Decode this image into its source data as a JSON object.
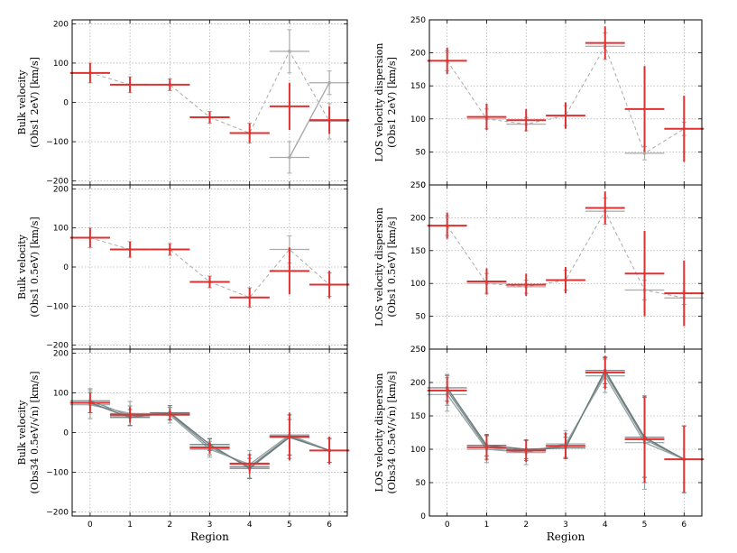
{
  "chart_data": [
    {
      "type": "scatter",
      "panel": "left-top",
      "ylabel_line1": "Bulk velocity",
      "ylabel_line2": "(Obs1 2eV) [km/s]",
      "xlabel": "",
      "ylim": [
        -210,
        210
      ],
      "yticks": [
        -200,
        -100,
        0,
        100,
        200
      ],
      "xticks": [
        0,
        1,
        2,
        3,
        4,
        5,
        6
      ],
      "grid": true,
      "series": [
        {
          "name": "comparison",
          "color": "#aaaaaa",
          "x": [
            0,
            1,
            2,
            3,
            4,
            5,
            6
          ],
          "y": [
            75,
            45,
            45,
            -38,
            -78,
            130,
            -48
          ],
          "yerr": [
            25,
            20,
            15,
            15,
            25,
            55,
            45
          ],
          "dashed": true
        },
        {
          "name": "comparison-2",
          "color": "#aaaaaa",
          "x": [
            5,
            6
          ],
          "y": [
            -140,
            50
          ],
          "yerr": [
            40,
            30
          ],
          "dashed": false
        },
        {
          "name": "measurement",
          "color": "#e03131",
          "x": [
            0,
            1,
            2,
            3,
            4,
            5,
            6
          ],
          "y": [
            75,
            45,
            45,
            -38,
            -78,
            -10,
            -45
          ],
          "yerr": [
            25,
            20,
            15,
            15,
            25,
            60,
            35
          ]
        }
      ]
    },
    {
      "type": "scatter",
      "panel": "right-top",
      "ylabel_line1": "LOS velocity dispersion",
      "ylabel_line2": "(Obs1 2eV) [km/s]",
      "xlabel": "",
      "ylim": [
        0,
        250
      ],
      "yticks": [
        0,
        50,
        100,
        150,
        200,
        250
      ],
      "xticks": [
        0,
        1,
        2,
        3,
        4,
        5,
        6
      ],
      "grid": true,
      "series": [
        {
          "name": "comparison",
          "color": "#aaaaaa",
          "x": [
            0,
            1,
            2,
            3,
            4,
            5,
            6
          ],
          "y": [
            188,
            100,
            92,
            105,
            210,
            48,
            85
          ],
          "yerr": [
            15,
            15,
            10,
            15,
            20,
            10,
            10
          ],
          "dashed": true
        },
        {
          "name": "measurement",
          "color": "#e03131",
          "x": [
            0,
            1,
            2,
            3,
            4,
            5,
            6
          ],
          "y": [
            188,
            103,
            98,
            105,
            215,
            115,
            85
          ],
          "yerr": [
            20,
            20,
            17,
            20,
            25,
            65,
            50
          ]
        }
      ]
    },
    {
      "type": "scatter",
      "panel": "left-middle",
      "ylabel_line1": "Bulk velocity",
      "ylabel_line2": "(Obs1 0.5eV) [km/s]",
      "xlabel": "",
      "ylim": [
        -210,
        210
      ],
      "yticks": [
        -200,
        -100,
        0,
        100,
        200
      ],
      "xticks": [
        0,
        1,
        2,
        3,
        4,
        5,
        6
      ],
      "grid": true,
      "series": [
        {
          "name": "comparison",
          "color": "#aaaaaa",
          "x": [
            0,
            1,
            2,
            3,
            4,
            5,
            6
          ],
          "y": [
            75,
            45,
            45,
            -38,
            -78,
            45,
            -45
          ],
          "yerr": [
            25,
            20,
            15,
            15,
            25,
            35,
            30
          ],
          "dashed": true
        },
        {
          "name": "measurement",
          "color": "#e03131",
          "x": [
            0,
            1,
            2,
            3,
            4,
            5,
            6
          ],
          "y": [
            75,
            45,
            45,
            -38,
            -78,
            -10,
            -45
          ],
          "yerr": [
            25,
            20,
            15,
            15,
            25,
            60,
            35
          ]
        }
      ]
    },
    {
      "type": "scatter",
      "panel": "right-middle",
      "ylabel_line1": "LOS velocity dispersion",
      "ylabel_line2": "(Obs1 0.5eV) [km/s]",
      "xlabel": "",
      "ylim": [
        0,
        250
      ],
      "yticks": [
        0,
        50,
        100,
        150,
        200,
        250
      ],
      "xticks": [
        0,
        1,
        2,
        3,
        4,
        5,
        6
      ],
      "grid": true,
      "series": [
        {
          "name": "comparison",
          "color": "#aaaaaa",
          "x": [
            0,
            1,
            2,
            3,
            4,
            5,
            6
          ],
          "y": [
            188,
            100,
            95,
            105,
            210,
            90,
            78
          ],
          "yerr": [
            15,
            15,
            10,
            15,
            20,
            15,
            10
          ],
          "dashed": true
        },
        {
          "name": "measurement",
          "color": "#e03131",
          "x": [
            0,
            1,
            2,
            3,
            4,
            5,
            6
          ],
          "y": [
            188,
            103,
            98,
            105,
            215,
            115,
            85
          ],
          "yerr": [
            20,
            20,
            17,
            20,
            25,
            65,
            50
          ]
        }
      ]
    },
    {
      "type": "scatter",
      "panel": "left-bottom",
      "ylabel_line1": "Bulk velocity",
      "ylabel_line2": "(Obs34 0.5eV/√n) [km/s]",
      "xlabel": "Region",
      "ylim": [
        -210,
        210
      ],
      "yticks": [
        -200,
        -100,
        0,
        100,
        200
      ],
      "xticks": [
        0,
        1,
        2,
        3,
        4,
        5,
        6
      ],
      "grid": true,
      "series": [
        {
          "name": "comparison-a",
          "color": "#7f8c8d",
          "x": [
            0,
            1,
            2,
            3,
            4,
            5,
            6
          ],
          "y": [
            80,
            42,
            48,
            -36,
            -86,
            -10,
            -45
          ],
          "yerr": [
            30,
            25,
            15,
            20,
            30,
            55,
            30
          ]
        },
        {
          "name": "comparison-b",
          "color": "#95a5a6",
          "x": [
            0,
            1,
            2,
            3,
            4,
            5,
            6
          ],
          "y": [
            70,
            48,
            44,
            -42,
            -80,
            -6,
            -45
          ],
          "yerr": [
            35,
            30,
            20,
            20,
            35,
            50,
            30
          ]
        },
        {
          "name": "comparison-c",
          "color": "#6c7a7b",
          "x": [
            0,
            1,
            2,
            3,
            4,
            5,
            6
          ],
          "y": [
            75,
            38,
            50,
            -30,
            -90,
            -12,
            -45
          ],
          "yerr": [
            25,
            20,
            18,
            15,
            25,
            45,
            30
          ]
        },
        {
          "name": "measurement",
          "color": "#e03131",
          "x": [
            0,
            1,
            2,
            3,
            4,
            5,
            6
          ],
          "y": [
            75,
            45,
            45,
            -38,
            -78,
            -10,
            -45
          ],
          "yerr": [
            25,
            20,
            15,
            15,
            25,
            60,
            35
          ]
        }
      ]
    },
    {
      "type": "scatter",
      "panel": "right-bottom",
      "ylabel_line1": "LOS velocity dispersion",
      "ylabel_line2": "(Obs34 0.5eV/√n) [km/s]",
      "xlabel": "Region",
      "ylim": [
        0,
        250
      ],
      "yticks": [
        0,
        50,
        100,
        150,
        200,
        250
      ],
      "xticks": [
        0,
        1,
        2,
        3,
        4,
        5,
        6
      ],
      "grid": true,
      "series": [
        {
          "name": "comparison-a",
          "color": "#7f8c8d",
          "x": [
            0,
            1,
            2,
            3,
            4,
            5,
            6
          ],
          "y": [
            188,
            103,
            98,
            105,
            215,
            115,
            85
          ],
          "yerr": [
            22,
            18,
            15,
            18,
            22,
            65,
            50
          ]
        },
        {
          "name": "comparison-b",
          "color": "#95a5a6",
          "x": [
            0,
            1,
            2,
            3,
            4,
            5,
            6
          ],
          "y": [
            182,
            100,
            95,
            108,
            210,
            110,
            85
          ],
          "yerr": [
            25,
            20,
            18,
            20,
            25,
            70,
            50
          ]
        },
        {
          "name": "comparison-c",
          "color": "#6c7a7b",
          "x": [
            0,
            1,
            2,
            3,
            4,
            5,
            6
          ],
          "y": [
            192,
            106,
            100,
            102,
            218,
            118,
            85
          ],
          "yerr": [
            20,
            16,
            14,
            16,
            20,
            60,
            50
          ]
        },
        {
          "name": "measurement",
          "color": "#e03131",
          "x": [
            0,
            1,
            2,
            3,
            4,
            5,
            6
          ],
          "y": [
            188,
            103,
            98,
            105,
            215,
            115,
            85
          ],
          "yerr": [
            20,
            20,
            17,
            20,
            25,
            65,
            50
          ]
        }
      ]
    }
  ]
}
